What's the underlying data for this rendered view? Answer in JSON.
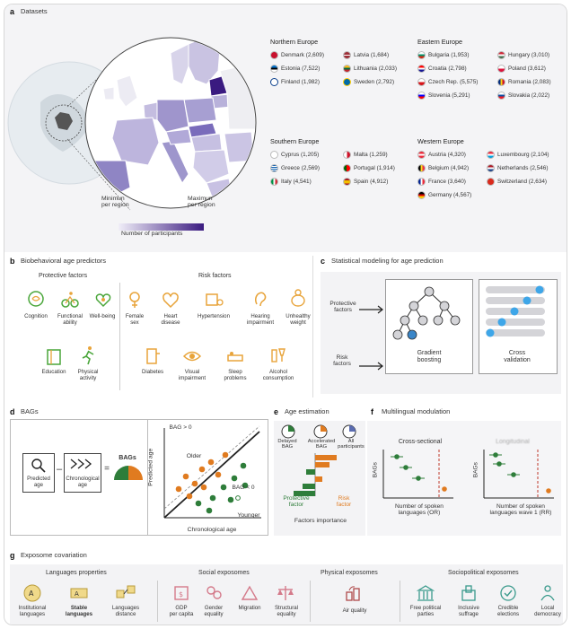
{
  "a": {
    "letter": "a",
    "title": "Datasets",
    "legend": {
      "min": "Minimun\nper region",
      "max": "Maximun\nper region",
      "caption": "Number of participants"
    },
    "regions": [
      {
        "name": "Northern Europe",
        "countries": [
          "Denmark (2,609)",
          "Estonia (7,522)",
          "Finland (1,982)",
          "Latvia (1,684)",
          "Lithuania (2,033)",
          "Sweden (2,792)"
        ]
      },
      {
        "name": "Eastern Europe",
        "countries": [
          "Bulgaria (1,953)",
          "Croatia (2,798)",
          "Czech Rep. (5,575)",
          "Slovenia (5,291)",
          "Hungary (3,010)",
          "Poland (3,612)",
          "Romania (2,083)",
          "Slovakia (2,022)"
        ]
      },
      {
        "name": "Southern Europe",
        "countries": [
          "Cyprus (1,205)",
          "Greece (2,569)",
          "Italy (4,541)",
          "Malta (1,259)",
          "Portugal (1,914)",
          "Spain (4,912)"
        ]
      },
      {
        "name": "Western Europe",
        "countries": [
          "Austria (4,320)",
          "Belgium (4,942)",
          "France (3,640)",
          "Germany (4,567)",
          "Luxembourg (2,104)",
          "Netherlands (2,546)",
          "Switzerland (2,634)"
        ]
      }
    ]
  },
  "b": {
    "letter": "b",
    "title": "Biobehavioral age predictors",
    "protective_title": "Protective factors",
    "risk_title": "Risk factors",
    "protective": [
      "Cognition",
      "Functional\nability",
      "Well-being",
      "Education",
      "Physical\nactivity"
    ],
    "risk": [
      "Female\nsex",
      "Heart\ndisease",
      "Hypertension",
      "Hearing\nimpairment",
      "Unhealthy\nweight",
      "Diabetes",
      "Visual\nimpairment",
      "Sleep\nproblems",
      "Alcohol\nconsumption"
    ]
  },
  "c": {
    "letter": "c",
    "title": "Statistical modeling for age prediction",
    "protective": "Protective\nfactors",
    "risk": "Risk\nfactors",
    "gb": "Gradient\nboosting",
    "cv": "Cross\nvalidation"
  },
  "d": {
    "letter": "d",
    "title": "BAGs",
    "predicted": "Predicted\nage",
    "chronological": "Chronological\nage",
    "bags": "BAGs",
    "minus": "–",
    "equals": "=",
    "bag_pos": "BAG > 0",
    "bag_neg": "BAG < 0",
    "older": "Older",
    "younger": "Younger",
    "xlabel": "Chronological age",
    "ylabel": "Predicted age"
  },
  "e": {
    "letter": "e",
    "title": "Age estimation",
    "cols": [
      "Delayed\nBAG",
      "Accelerated\nBAG",
      "All\nparticipants"
    ],
    "protective": "Protective\nfactor",
    "risk": "Risk\nfactor",
    "xlabel": "Factors importance"
  },
  "f": {
    "letter": "f",
    "title": "Multilingual modulation",
    "left_title": "Cross-sectional",
    "right_title": "Longitudinal",
    "ylabel": "BAGs",
    "left_x": "Number of spoken\nlanguages (OR)",
    "right_x": "Number of spoken\nlanguages wave 1 (RR)"
  },
  "g": {
    "letter": "g",
    "title": "Exposome covariation",
    "groups": [
      {
        "name": "Languages properties",
        "items": [
          "Institutional\nlanguages",
          "Stable\nlanguages",
          "Languages\ndistance"
        ]
      },
      {
        "name": "Social exposomes",
        "items": [
          "GDP\nper capita",
          "Gender\nequality",
          "Migration",
          "Structural\nequality"
        ]
      },
      {
        "name": "Physical exposomes",
        "items": [
          "Air quality"
        ]
      },
      {
        "name": "Sociopolitical exposomes",
        "items": [
          "Free political\nparties",
          "Inclusive\nsuffrage",
          "Credible\nelections",
          "Local\ndemocracy"
        ]
      }
    ]
  },
  "colors": {
    "orange": "#e07b20",
    "green": "#2e7d3a",
    "purple": "#4b1f8c",
    "teal": "#3a9a8c",
    "red": "#c0392b"
  }
}
